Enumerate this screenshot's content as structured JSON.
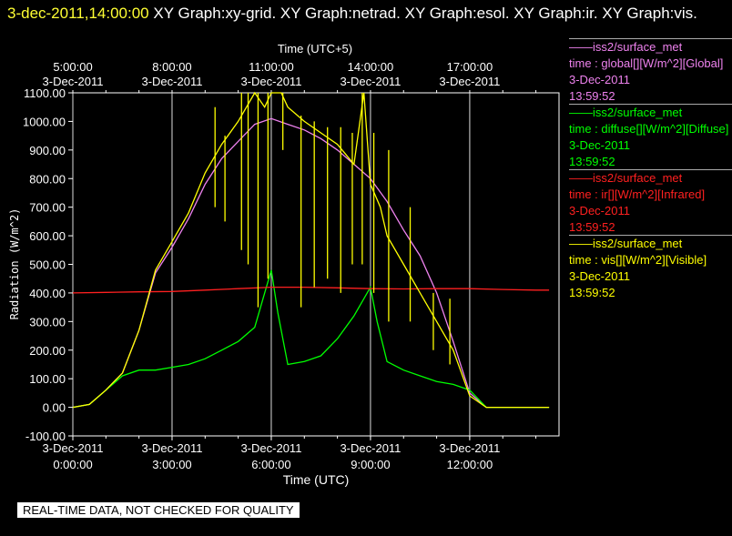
{
  "header": {
    "timestamp": "3-dec-2011,14:00:00",
    "title": "XY Graph:xy-grid.  XY Graph:netrad.  XY Graph:esol.  XY Graph:ir.  XY Graph:vis."
  },
  "legend": [
    {
      "source": "——iss2/surface_met",
      "variable": "time : global[][W/m^2][Global]",
      "date": "3-Dec-2011",
      "time": "13:59:52",
      "color": "#ee82ee"
    },
    {
      "source": "——iss2/surface_met",
      "variable": "time : diffuse[][W/m^2][Diffuse]",
      "date": "3-Dec-2011",
      "time": "13:59:52",
      "color": "#00ff00"
    },
    {
      "source": "——iss2/surface_met",
      "variable": "time : ir[][W/m^2][Infrared]",
      "date": "3-Dec-2011",
      "time": "13:59:52",
      "color": "#ff2020"
    },
    {
      "source": "——iss2/surface_met",
      "variable": "time : vis[][W/m^2][Visible]",
      "date": "3-Dec-2011",
      "time": "13:59:52",
      "color": "#ffff00"
    }
  ],
  "note": "REAL-TIME DATA, NOT CHECKED FOR QUALITY",
  "chart_data": {
    "type": "line",
    "ylabel": "Radiation (W/m^2)",
    "xlabel": "Time (UTC)",
    "x2label": "Time (UTC+5)",
    "ylim": [
      -100,
      1100
    ],
    "xlim": [
      0,
      14.7
    ],
    "yticks": [
      "-100.00",
      "0.00",
      "100.00",
      "200.00",
      "300.00",
      "400.00",
      "500.00",
      "600.00",
      "700.00",
      "800.00",
      "900.00",
      "1000.00",
      "1100.00"
    ],
    "xticks": [
      {
        "x": 0,
        "date": "3-Dec-2011",
        "time": "0:00:00"
      },
      {
        "x": 3,
        "date": "3-Dec-2011",
        "time": "3:00:00"
      },
      {
        "x": 6,
        "date": "3-Dec-2011",
        "time": "6:00:00"
      },
      {
        "x": 9,
        "date": "3-Dec-2011",
        "time": "9:00:00"
      },
      {
        "x": 12,
        "date": "3-Dec-2011",
        "time": "12:00:00"
      }
    ],
    "x2ticks": [
      {
        "x": 0,
        "time": "5:00:00",
        "date": "3-Dec-2011"
      },
      {
        "x": 3,
        "time": "8:00:00",
        "date": "3-Dec-2011"
      },
      {
        "x": 6,
        "time": "11:00:00",
        "date": "3-Dec-2011"
      },
      {
        "x": 9,
        "time": "14:00:00",
        "date": "3-Dec-2011"
      },
      {
        "x": 12,
        "time": "17:00:00",
        "date": "3-Dec-2011"
      }
    ],
    "grid": "vertical",
    "series": [
      {
        "name": "global",
        "color": "#ee82ee",
        "x": [
          0,
          0.5,
          1,
          1.5,
          2,
          2.5,
          3,
          3.5,
          4,
          4.5,
          5,
          5.5,
          6,
          6.5,
          7,
          7.5,
          8,
          8.5,
          9,
          9.5,
          10,
          10.5,
          11,
          11.5,
          12,
          12.5,
          13,
          13.5,
          14,
          14.4
        ],
        "y": [
          0,
          10,
          60,
          120,
          270,
          470,
          560,
          660,
          780,
          870,
          930,
          990,
          1010,
          990,
          970,
          940,
          900,
          850,
          800,
          720,
          620,
          530,
          400,
          230,
          50,
          0,
          0,
          0,
          0,
          0
        ]
      },
      {
        "name": "diffuse",
        "color": "#00ff00",
        "x": [
          0,
          0.5,
          1,
          1.5,
          2,
          2.5,
          3,
          3.5,
          4,
          4.5,
          5,
          5.5,
          5.8,
          6,
          6.2,
          6.5,
          7,
          7.5,
          8,
          8.5,
          8.8,
          9,
          9.2,
          9.5,
          10,
          10.5,
          11,
          11.5,
          12,
          12.5,
          13,
          13.5,
          14,
          14.4
        ],
        "y": [
          0,
          10,
          60,
          110,
          130,
          130,
          140,
          150,
          170,
          200,
          230,
          280,
          400,
          480,
          330,
          150,
          160,
          180,
          240,
          320,
          380,
          420,
          300,
          160,
          130,
          110,
          90,
          80,
          60,
          0,
          0,
          0,
          0,
          0
        ]
      },
      {
        "name": "ir",
        "color": "#ff2020",
        "x": [
          0,
          1,
          2,
          3,
          4,
          5,
          6,
          7,
          8,
          9,
          10,
          11,
          12,
          13,
          14,
          14.4
        ],
        "y": [
          400,
          402,
          404,
          405,
          410,
          415,
          420,
          420,
          418,
          415,
          414,
          415,
          415,
          412,
          410,
          410
        ]
      },
      {
        "name": "vis",
        "color": "#ffff00",
        "x": [
          0,
          0.5,
          1,
          1.5,
          2,
          2.5,
          3,
          3.5,
          4,
          4.5,
          5,
          5.5,
          5.8,
          6,
          6.3,
          6.5,
          7,
          7.5,
          8,
          8.5,
          8.8,
          9,
          9.3,
          9.5,
          10,
          10.5,
          11,
          11.5,
          12,
          12.5,
          13,
          13.5,
          14,
          14.4
        ],
        "y": [
          0,
          10,
          60,
          120,
          270,
          480,
          580,
          680,
          820,
          920,
          1000,
          1100,
          1050,
          1100,
          1100,
          1050,
          1000,
          960,
          920,
          850,
          1100,
          780,
          700,
          600,
          500,
          400,
          300,
          200,
          40,
          0,
          0,
          0,
          0,
          0
        ]
      }
    ],
    "spikes": {
      "vis": [
        [
          4.3,
          1050,
          700
        ],
        [
          4.6,
          950,
          650
        ],
        [
          5.1,
          1100,
          550
        ],
        [
          5.3,
          1100,
          500
        ],
        [
          5.6,
          1100,
          350
        ],
        [
          5.9,
          1100,
          450
        ],
        [
          6.35,
          1100,
          900
        ],
        [
          6.9,
          1020,
          350
        ],
        [
          7.3,
          1000,
          420
        ],
        [
          7.7,
          980,
          450
        ],
        [
          8.1,
          980,
          400
        ],
        [
          8.45,
          960,
          500
        ],
        [
          8.75,
          1100,
          500
        ],
        [
          9.1,
          960,
          400
        ],
        [
          9.55,
          900,
          300
        ],
        [
          10.2,
          700,
          300
        ],
        [
          10.9,
          400,
          200
        ],
        [
          11.4,
          380,
          150
        ]
      ]
    }
  }
}
